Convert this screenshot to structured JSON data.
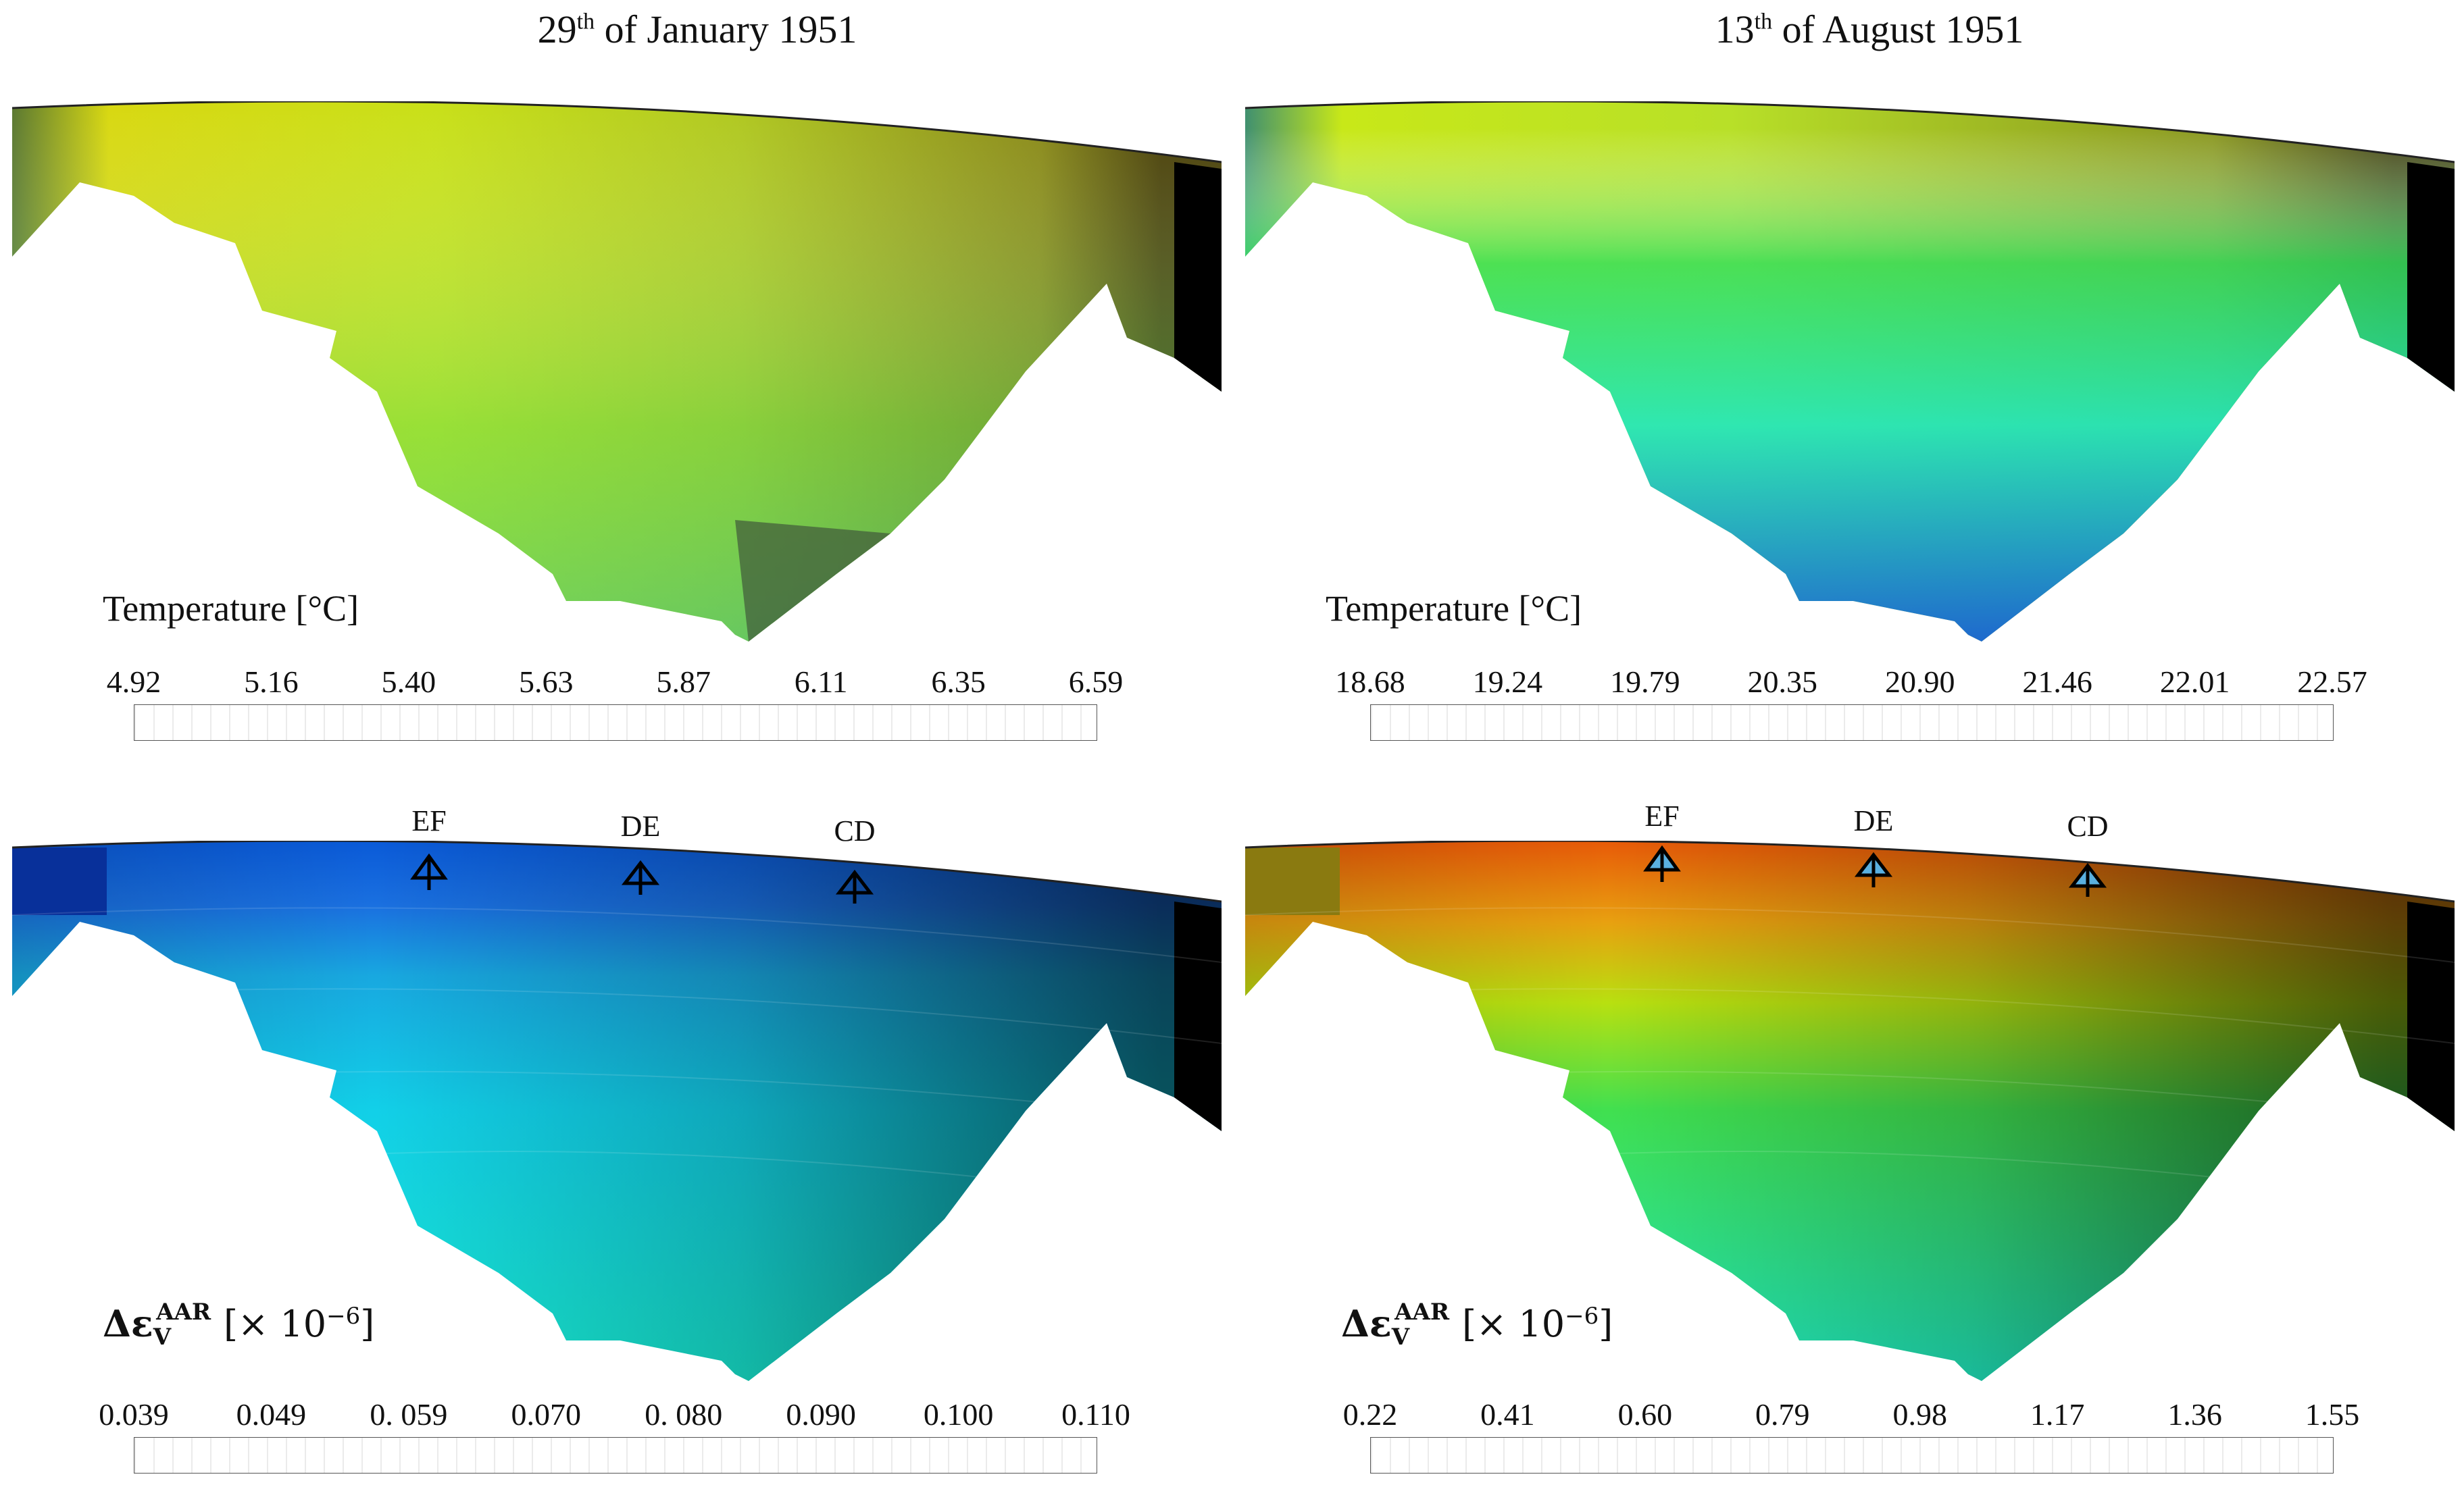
{
  "titles": {
    "left": {
      "day": "29",
      "suffix": "th",
      "rest": " of January 1951"
    },
    "right": {
      "day": "13",
      "suffix": "th",
      "rest": " of August 1951"
    }
  },
  "legends": {
    "temp_label": "Temperature [°C]",
    "strain_label": "Δε_V^AAR [× 10⁻⁶]",
    "temp_jan_ticks": [
      "4.92",
      "5.16",
      "5.40",
      "5.63",
      "5.87",
      "6.11",
      "6.35",
      "6.59"
    ],
    "temp_aug_ticks": [
      "18.68",
      "19.24",
      "19.79",
      "20.35",
      "20.90",
      "21.46",
      "22.01",
      "22.57"
    ],
    "strain_jan_ticks": [
      "0.039",
      "0.049",
      "0. 059",
      "0.070",
      "0. 080",
      "0.090",
      "0.100",
      "0.110"
    ],
    "strain_aug_ticks": [
      "0.22",
      "0.41",
      "0.60",
      "0.79",
      "0.98",
      "1.17",
      "1.36",
      "1.55"
    ]
  },
  "markers": [
    "EF",
    "DE",
    "CD"
  ],
  "colors": {
    "jan_temp_main": "#c8dc10",
    "aug_temp_main": "#30e890",
    "jan_strain_crest": "#0a5ad8",
    "jan_strain_body": "#10d8e8",
    "aug_strain_crest": "#e85a08",
    "aug_strain_body": "#40e060",
    "shadow": "#000000"
  }
}
